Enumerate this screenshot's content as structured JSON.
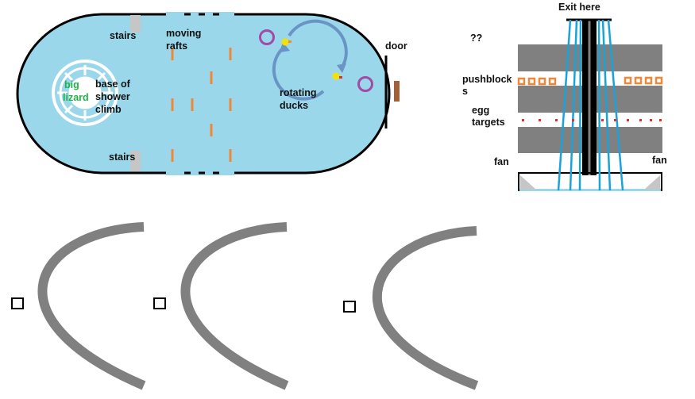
{
  "room": {
    "labels": {
      "stairs_top": "stairs",
      "stairs_bottom": "stairs",
      "moving_rafts_1": "moving",
      "moving_rafts_2": "rafts",
      "big_lizard_1": "big",
      "big_lizard_2": "lizard",
      "base_1": "base of",
      "base_2": "shower",
      "base_3": "climb",
      "rotating_ducks_1": "rotating",
      "rotating_ducks_2": "ducks",
      "door": "door"
    }
  },
  "shaft": {
    "labels": {
      "exit": "Exit here",
      "unknown": "??",
      "pushblocks_1": "pushblock",
      "pushblocks_2": "s",
      "egg_1": "egg",
      "egg_2": "targets",
      "fan_left": "fan",
      "fan_right": "fan"
    }
  },
  "colors": {
    "water": "#9ad7ea",
    "outline": "#000000",
    "raft": "#f0883a",
    "stairs": "#c6c6c6",
    "duck": "#f5e200",
    "ring": "#a24aa6",
    "arrow": "#6a93c6",
    "wall": "#808080",
    "beam": "#1aa3d8",
    "pushblock": "#f0883a",
    "egg_target": "#e23030",
    "door": "#a0623a",
    "lizard_green": "#22b04a"
  },
  "arcs": {
    "count": 3
  }
}
